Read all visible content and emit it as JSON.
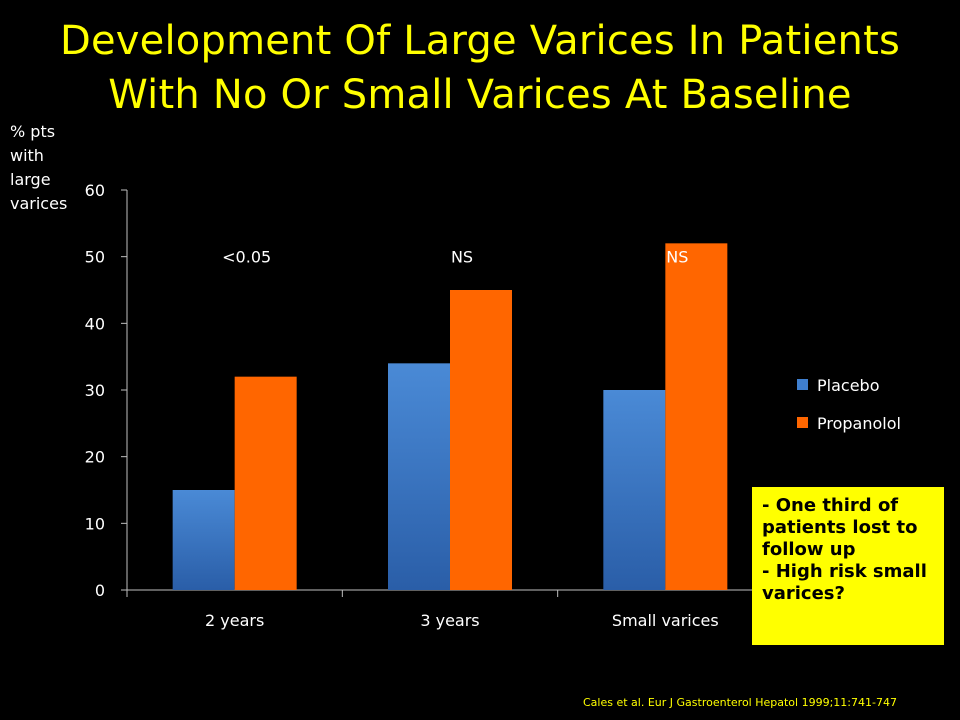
{
  "title_lines": [
    "Development Of Large Varices In Patients",
    "With No Or Small Varices At Baseline"
  ],
  "ylabel_lines": [
    "% pts",
    "with",
    "large",
    "varices"
  ],
  "note_lines": [
    "- One third of patients lost to follow up",
    "- High risk small varices?"
  ],
  "citation": "Cales et al. Eur J Gastroenterol Hepatol 1999;11:741-747",
  "colors": {
    "title": "#ffff00",
    "placebo": "#3f7fcf",
    "propanolol": "#ff6600",
    "note_bg": "#ffff00",
    "background": "#000000"
  },
  "chart_data": {
    "type": "bar",
    "title": "",
    "xlabel": "",
    "ylabel": "% pts with large varices",
    "categories": [
      "2 years",
      "3 years",
      "Small varices"
    ],
    "series": [
      {
        "name": "Placebo",
        "values": [
          15,
          34,
          30
        ]
      },
      {
        "name": "Propanolol",
        "values": [
          32,
          45,
          52
        ]
      }
    ],
    "ylim": [
      0,
      60
    ],
    "yticks": [
      0,
      10,
      20,
      30,
      40,
      50,
      60
    ],
    "annotations": [
      "<0.05",
      "NS",
      "NS"
    ],
    "legend": "right",
    "grid": false
  }
}
